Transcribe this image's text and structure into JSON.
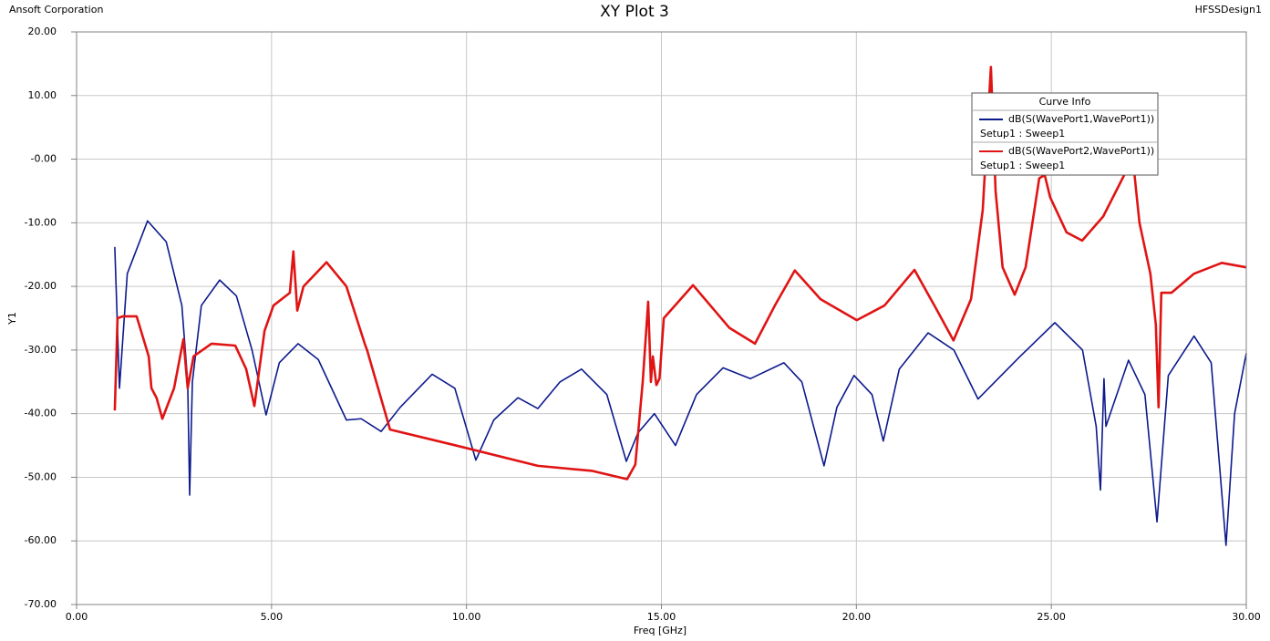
{
  "chart_data": {
    "type": "line",
    "title": "XY Plot 3",
    "company": "Ansoft Corporation",
    "design": "HFSSDesign1",
    "x_label": "Freq [GHz]",
    "y_label": "Y1",
    "legend_title": "Curve Info",
    "legend_position": "upper right",
    "grid": true,
    "xlim": [
      0,
      30
    ],
    "ylim": [
      -70,
      20
    ],
    "xticks": [
      {
        "value": 0,
        "label": "0.00"
      },
      {
        "value": 5,
        "label": "5.00"
      },
      {
        "value": 10,
        "label": "10.00"
      },
      {
        "value": 15,
        "label": "15.00"
      },
      {
        "value": 20,
        "label": "20.00"
      },
      {
        "value": 25,
        "label": "25.00"
      },
      {
        "value": 30,
        "label": "30.00"
      }
    ],
    "yticks": [
      {
        "value": 20,
        "label": "20.00"
      },
      {
        "value": 10,
        "label": "10.00"
      },
      {
        "value": 0,
        "label": "-0.00"
      },
      {
        "value": -10,
        "label": "-10.00"
      },
      {
        "value": -20,
        "label": "-20.00"
      },
      {
        "value": -30,
        "label": "-30.00"
      },
      {
        "value": -40,
        "label": "-40.00"
      },
      {
        "value": -50,
        "label": "-50.00"
      },
      {
        "value": -60,
        "label": "-60.00"
      },
      {
        "value": -70,
        "label": "-70.00"
      }
    ],
    "series": [
      {
        "name": "dB(S(WavePort1,WavePort1))",
        "context": "Setup1 : Sweep1",
        "color": "#0c1a8c",
        "width": 1.6,
        "x": [
          0.98,
          1.1,
          1.3,
          1.82,
          2.3,
          2.7,
          2.85,
          2.9,
          2.97,
          3.2,
          3.67,
          4.1,
          4.5,
          4.86,
          5.2,
          5.68,
          6.2,
          6.92,
          7.3,
          7.81,
          8.3,
          9.12,
          9.7,
          10.24,
          10.7,
          11.32,
          11.83,
          12.4,
          12.95,
          13.6,
          14.1,
          14.4,
          14.82,
          15.36,
          15.9,
          16.58,
          17.28,
          18.14,
          18.6,
          19.17,
          19.5,
          19.94,
          20.4,
          20.69,
          21.1,
          21.84,
          22.5,
          23.12,
          24.2,
          25.09,
          25.8,
          26.15,
          26.26,
          26.35,
          26.4,
          26.98,
          27.4,
          27.71,
          28.0,
          28.66,
          29.1,
          29.48,
          29.7,
          30.0
        ],
        "values": [
          -13.8,
          -36,
          -18,
          -9.7,
          -13,
          -23,
          -35,
          -52.8,
          -35,
          -23,
          -19,
          -21.5,
          -30,
          -40.2,
          -32,
          -29,
          -31.5,
          -41,
          -40.8,
          -42.8,
          -39,
          -33.8,
          -36,
          -47.3,
          -41,
          -37.5,
          -39.2,
          -35,
          -33,
          -37,
          -47.5,
          -43,
          -40,
          -45,
          -37,
          -32.8,
          -34.5,
          -32,
          -35,
          -48.2,
          -39,
          -34,
          -37,
          -44.3,
          -33,
          -27.3,
          -30,
          -37.7,
          -31,
          -25.7,
          -30,
          -42,
          -52,
          -34.5,
          -42,
          -31.6,
          -37,
          -57,
          -34,
          -27.8,
          -32,
          -60.7,
          -40,
          -30.5
        ]
      },
      {
        "name": "dB(S(WavePort2,WavePort1))",
        "context": "Setup1 : Sweep1",
        "color": "#e01414",
        "width": 2.6,
        "x": [
          0.98,
          1.05,
          1.19,
          1.54,
          1.85,
          1.92,
          2.05,
          2.2,
          2.5,
          2.74,
          2.85,
          3.0,
          3.46,
          4.07,
          4.35,
          4.56,
          4.82,
          5.05,
          5.47,
          5.56,
          5.66,
          5.82,
          6.41,
          6.92,
          7.39,
          7.45,
          8.04,
          9.73,
          11.83,
          13.23,
          14.12,
          14.33,
          14.52,
          14.66,
          14.73,
          14.78,
          14.87,
          14.95,
          15.06,
          15.81,
          16.74,
          17.4,
          17.91,
          18.42,
          19.08,
          20.01,
          20.72,
          21.49,
          22.0,
          22.49,
          22.94,
          23.24,
          23.45,
          23.57,
          23.75,
          24.06,
          24.34,
          24.69,
          24.83,
          24.97,
          25.39,
          25.79,
          26.33,
          26.91,
          27.1,
          27.26,
          27.54,
          27.68,
          27.75,
          27.82,
          28.08,
          28.66,
          29.37,
          30.0
        ],
        "values": [
          -39.5,
          -25,
          -24.7,
          -24.7,
          -31,
          -36,
          -37.5,
          -40.8,
          -36,
          -28.3,
          -36,
          -31,
          -29,
          -29.3,
          -33,
          -38.8,
          -27,
          -23,
          -21,
          -14.5,
          -23.8,
          -20,
          -16.2,
          -20,
          -29,
          -30,
          -42.5,
          -45,
          -48.2,
          -49,
          -50.3,
          -48,
          -35,
          -22.4,
          -35,
          -31,
          -35.5,
          -34.5,
          -25,
          -19.8,
          -26.5,
          -29,
          -23,
          -17.5,
          -22,
          -25.3,
          -23,
          -17.4,
          -23,
          -28.5,
          -22,
          -8,
          14.5,
          -5,
          -17,
          -21.3,
          -17,
          -3,
          -2.5,
          -6,
          -11.5,
          -12.8,
          -9,
          -2,
          -0.5,
          -10,
          -18,
          -26,
          -39,
          -21,
          -21,
          -18,
          -16.3,
          -17
        ]
      }
    ]
  }
}
